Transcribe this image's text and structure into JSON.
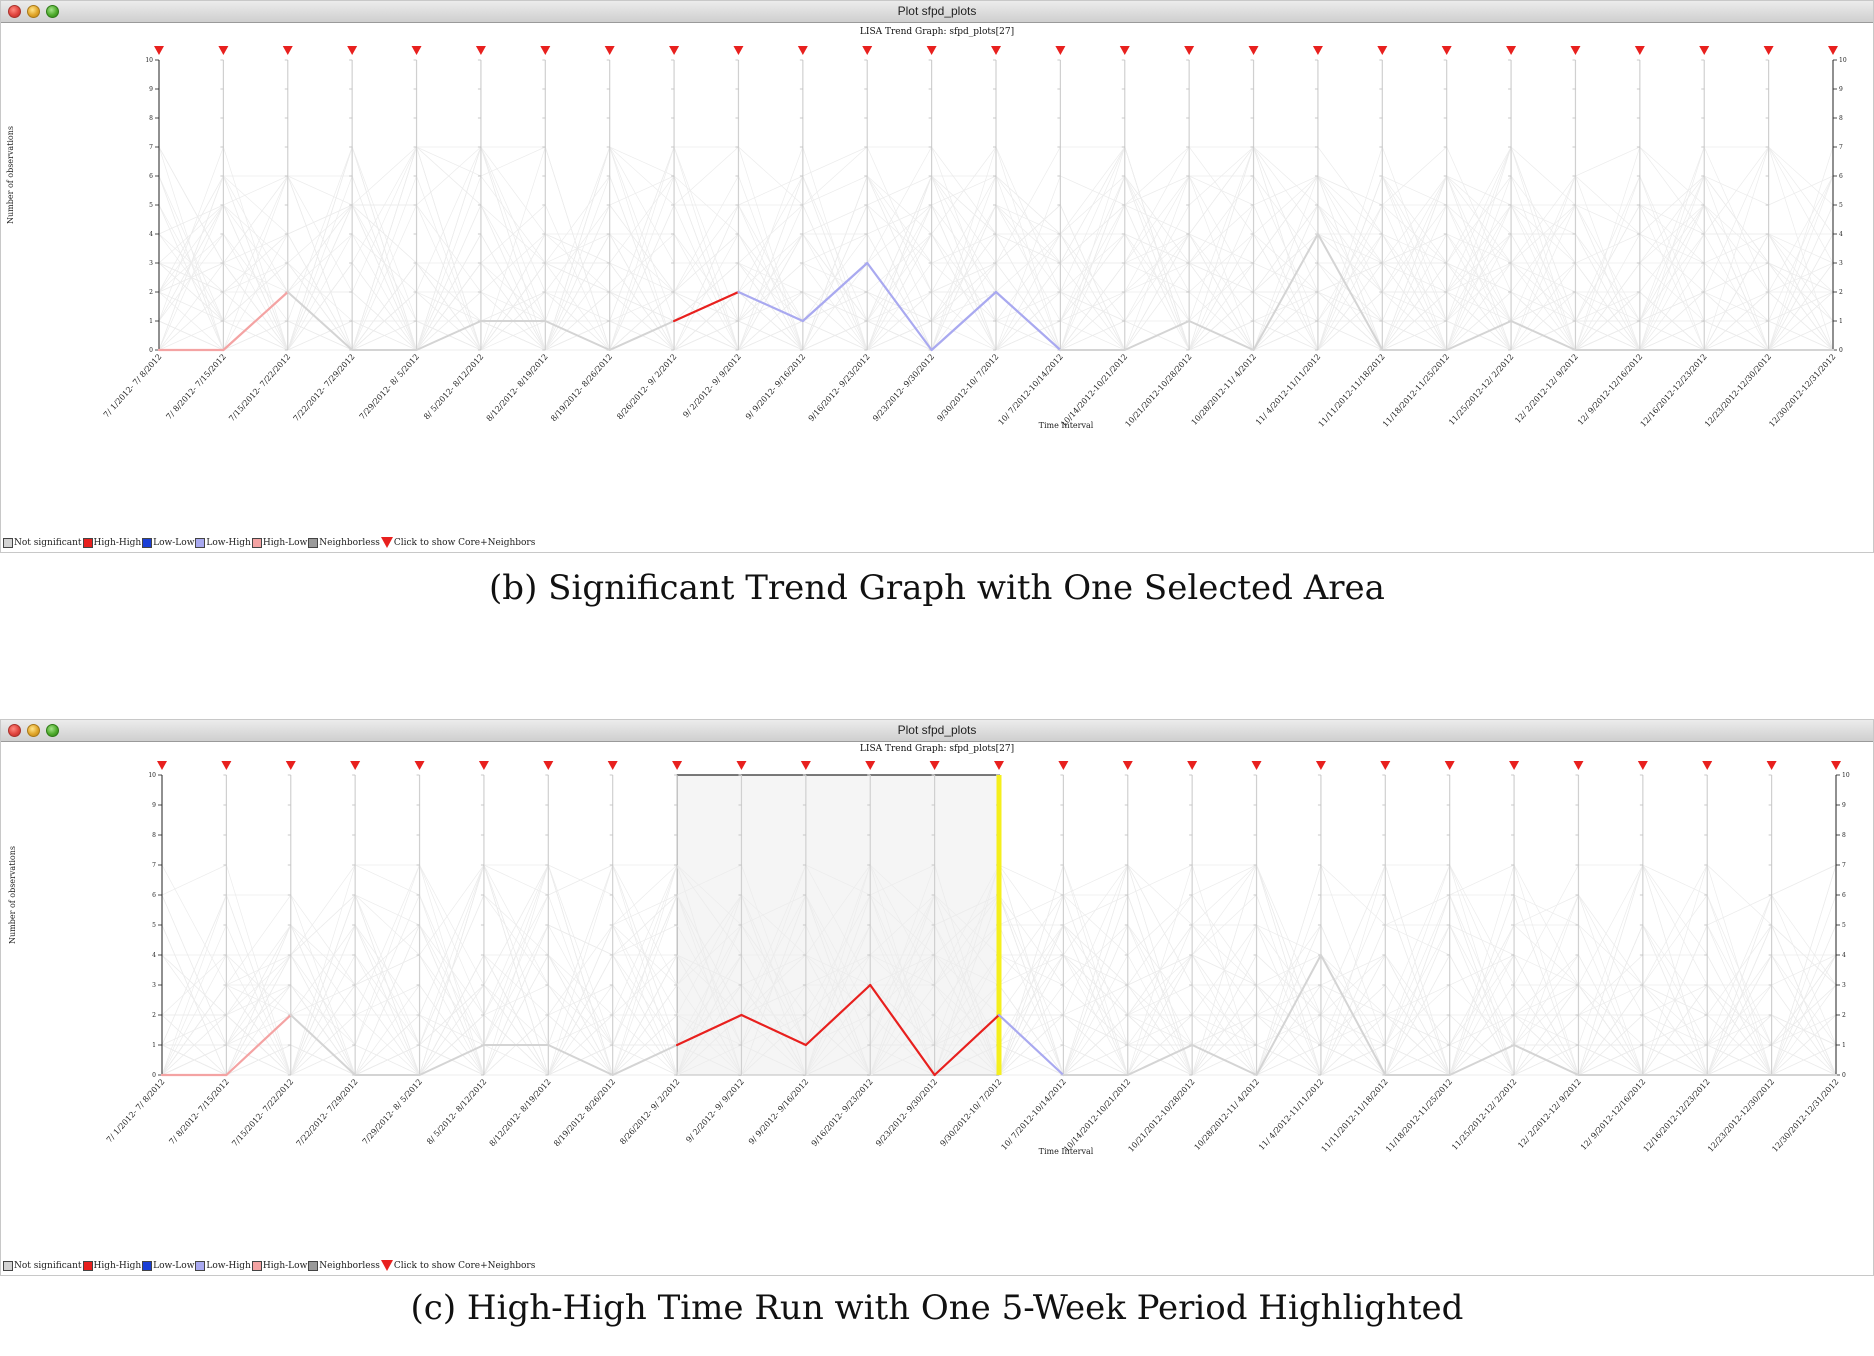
{
  "panels": [
    {
      "window_title": "Plot sfpd_plots",
      "chart_title": "LISA Trend Graph: sfpd_plots[27]",
      "caption": "(b) Significant Trend Graph with One Selected Area",
      "chart_data": {
        "type": "line",
        "title": "LISA Trend Graph: sfpd_plots[27]",
        "xlabel": "Time Interval",
        "ylabel": "Number of observations",
        "ylim": [
          0,
          10
        ],
        "y_ticks": [
          "0",
          "1",
          "2",
          "3",
          "4",
          "5",
          "6",
          "7",
          "8",
          "9",
          "10"
        ],
        "categories": [
          "7/ 1/2012- 7/ 8/2012",
          "7/ 8/2012- 7/15/2012",
          "7/15/2012- 7/22/2012",
          "7/22/2012- 7/29/2012",
          "7/29/2012- 8/ 5/2012",
          "8/ 5/2012- 8/12/2012",
          "8/12/2012- 8/19/2012",
          "8/19/2012- 8/26/2012",
          "8/26/2012- 9/ 2/2012",
          "9/ 2/2012- 9/ 9/2012",
          "9/ 9/2012- 9/16/2012",
          "9/16/2012- 9/23/2012",
          "9/23/2012- 9/30/2012",
          "9/30/2012-10/ 7/2012",
          "10/ 7/2012-10/14/2012",
          "10/14/2012-10/21/2012",
          "10/21/2012-10/28/2012",
          "10/28/2012-11/ 4/2012",
          "11/ 4/2012-11/11/2012",
          "11/11/2012-11/18/2012",
          "11/18/2012-11/25/2012",
          "11/25/2012-12/ 2/2012",
          "12/ 2/2012-12/ 9/2012",
          "12/ 9/2012-12/16/2012",
          "12/16/2012-12/23/2012",
          "12/23/2012-12/30/2012",
          "12/30/2012-12/31/2012"
        ],
        "values": [
          0,
          0,
          2,
          0,
          0,
          1,
          1,
          0,
          1,
          2,
          1,
          3,
          0,
          2,
          0,
          0,
          1,
          0,
          4,
          0,
          0,
          1,
          0,
          0,
          0,
          0,
          0
        ],
        "segment_class": [
          "high-low",
          "high-low",
          "ns",
          "ns",
          "ns",
          "ns",
          "ns",
          "ns",
          "high-high",
          "low-high",
          "low-high",
          "low-high",
          "low-high",
          "low-high",
          "ns",
          "ns",
          "ns",
          "ns",
          "ns",
          "ns",
          "ns",
          "ns",
          "ns",
          "ns",
          "ns",
          "ns"
        ],
        "selection": null
      }
    },
    {
      "window_title": "Plot sfpd_plots",
      "chart_title": "LISA Trend Graph: sfpd_plots[27]",
      "caption": "(c) High-High Time Run with One 5-Week Period Highlighted",
      "chart_data": {
        "type": "line",
        "title": "LISA Trend Graph: sfpd_plots[27]",
        "xlabel": "Time Interval",
        "ylabel": "Number of observations",
        "ylim": [
          0,
          10
        ],
        "y_ticks": [
          "0",
          "1",
          "2",
          "3",
          "4",
          "5",
          "6",
          "7",
          "8",
          "9",
          "10"
        ],
        "categories": [
          "7/ 1/2012- 7/ 8/2012",
          "7/ 8/2012- 7/15/2012",
          "7/15/2012- 7/22/2012",
          "7/22/2012- 7/29/2012",
          "7/29/2012- 8/ 5/2012",
          "8/ 5/2012- 8/12/2012",
          "8/12/2012- 8/19/2012",
          "8/19/2012- 8/26/2012",
          "8/26/2012- 9/ 2/2012",
          "9/ 2/2012- 9/ 9/2012",
          "9/ 9/2012- 9/16/2012",
          "9/16/2012- 9/23/2012",
          "9/23/2012- 9/30/2012",
          "9/30/2012-10/ 7/2012",
          "10/ 7/2012-10/14/2012",
          "10/14/2012-10/21/2012",
          "10/21/2012-10/28/2012",
          "10/28/2012-11/ 4/2012",
          "11/ 4/2012-11/11/2012",
          "11/11/2012-11/18/2012",
          "11/18/2012-11/25/2012",
          "11/25/2012-12/ 2/2012",
          "12/ 2/2012-12/ 9/2012",
          "12/ 9/2012-12/16/2012",
          "12/16/2012-12/23/2012",
          "12/23/2012-12/30/2012",
          "12/30/2012-12/31/2012"
        ],
        "values": [
          0,
          0,
          2,
          0,
          0,
          1,
          1,
          0,
          1,
          2,
          1,
          3,
          0,
          2,
          0,
          0,
          1,
          0,
          4,
          0,
          0,
          1,
          0,
          0,
          0,
          0,
          0
        ],
        "segment_class": [
          "high-low",
          "high-low",
          "ns",
          "ns",
          "ns",
          "ns",
          "ns",
          "ns",
          "high-high",
          "high-high",
          "high-high",
          "high-high",
          "high-high",
          "low-high",
          "ns",
          "ns",
          "ns",
          "ns",
          "ns",
          "ns",
          "ns",
          "ns",
          "ns",
          "ns",
          "ns",
          "ns"
        ],
        "selection": {
          "from_index": 8,
          "to_index": 13,
          "highlight_index": 13
        }
      }
    }
  ],
  "legend": [
    {
      "label": "Not significant",
      "color": "#d3d3d3"
    },
    {
      "label": "High-High",
      "color": "#e8201e"
    },
    {
      "label": "Low-Low",
      "color": "#1a3fd6"
    },
    {
      "label": "Low-High",
      "color": "#a9a9f0"
    },
    {
      "label": "High-Low",
      "color": "#f4a3a3"
    },
    {
      "label": "Neighborless",
      "color": "#9a9a9a"
    },
    {
      "label": "Click to show Core+Neighbors",
      "symbol": "red-triangle"
    }
  ],
  "colors": {
    "ns": "#d4d4d4",
    "high-high": "#e8201e",
    "low-low": "#1a3fd6",
    "low-high": "#a9a9f0",
    "high-low": "#f4a3a3",
    "marker": "#e8201e",
    "highlight": "#f5ef1c",
    "selection_fill": "#f5f5f5"
  }
}
